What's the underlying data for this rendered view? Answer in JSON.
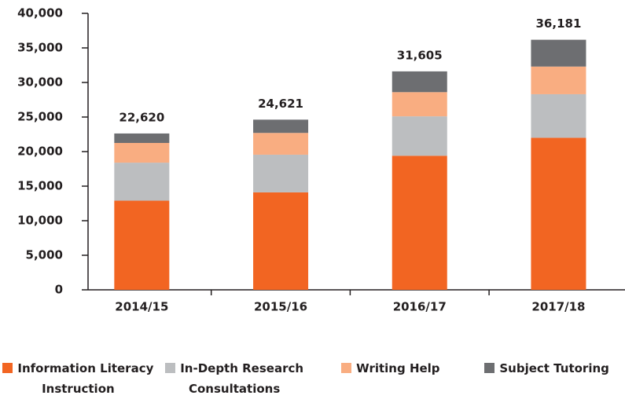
{
  "chart_data": {
    "type": "stacked_bar",
    "categories": [
      "2014/15",
      "2015/16",
      "2016/17",
      "2017/18"
    ],
    "series": [
      {
        "name": "Information Literacy Instruction",
        "color": "#f26522",
        "values": [
          12900,
          14100,
          19400,
          22000
        ]
      },
      {
        "name": "In-Depth Research Consultations",
        "color": "#bcbec0",
        "values": [
          5500,
          5450,
          5700,
          6300
        ]
      },
      {
        "name": "Writing Help",
        "color": "#f9ad81",
        "values": [
          2850,
          3150,
          3500,
          4000
        ]
      },
      {
        "name": "Subject Tutoring",
        "color": "#6d6e71",
        "values": [
          1370,
          1921,
          3005,
          3881
        ]
      }
    ],
    "totals": [
      22620,
      24621,
      31605,
      36181
    ],
    "total_labels": [
      "22,620",
      "24,621",
      "31,605",
      "36,181"
    ],
    "ylim": [
      0,
      40000
    ],
    "yticks": [
      0,
      {
        "value": 5000,
        "label": "5,000"
      },
      {
        "value": 10000,
        "label": "10,000"
      },
      {
        "value": 15000,
        "label": "15,000"
      },
      {
        "value": 20000,
        "label": "20,000"
      },
      {
        "value": 25000,
        "label": "25,000"
      },
      {
        "value": 30000,
        "label": "30,000"
      },
      {
        "value": 35000,
        "label": "35,000"
      },
      {
        "value": 40000,
        "label": "40,000"
      }
    ],
    "legend": "bottom"
  }
}
